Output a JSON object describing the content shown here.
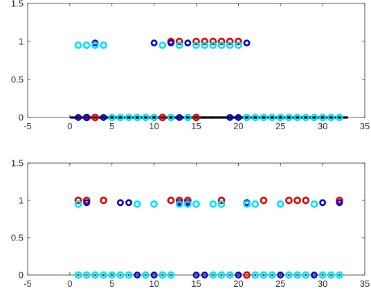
{
  "chart_data": [
    {
      "type": "scatter",
      "xlim": [
        -5,
        35
      ],
      "ylim": [
        0,
        1.5
      ],
      "xticks": [
        "-5",
        "0",
        "5",
        "10",
        "15",
        "20",
        "25",
        "30",
        "35"
      ],
      "yticks": [
        "0",
        "0.5",
        "1",
        "1.5"
      ],
      "baseline": {
        "x0": 0,
        "x1": 33,
        "y": 0,
        "color": "#000000"
      },
      "series": [
        {
          "color": "#e00000",
          "r": 4.0,
          "stroke": 2.7,
          "points": [
            [
              12,
              1.0
            ],
            [
              13,
              1.0
            ],
            [
              15,
              1.0
            ],
            [
              16,
              1.0
            ],
            [
              17,
              1.0
            ],
            [
              18,
              1.0
            ],
            [
              19,
              1.0
            ],
            [
              20,
              1.0
            ],
            [
              2,
              0
            ],
            [
              3,
              0
            ],
            [
              11,
              0
            ],
            [
              15,
              0
            ]
          ]
        },
        {
          "color": "#0000c8",
          "r": 3.6,
          "stroke": 2.7,
          "points": [
            [
              3,
              0.98
            ],
            [
              10,
              0.98
            ],
            [
              12,
              0.98
            ],
            [
              14,
              0.98
            ],
            [
              21,
              0.98
            ],
            [
              1,
              0
            ],
            [
              2,
              0
            ],
            [
              4,
              0
            ],
            [
              13,
              0
            ],
            [
              19,
              0
            ],
            [
              20,
              0
            ]
          ]
        },
        {
          "color": "#00e0ff",
          "r": 4.0,
          "stroke": 2.7,
          "points": [
            [
              1,
              0.95
            ],
            [
              2,
              0.95
            ],
            [
              3,
              0.95
            ],
            [
              4,
              0.95
            ],
            [
              11,
              0.95
            ],
            [
              13,
              0.95
            ],
            [
              15,
              0.95
            ],
            [
              16,
              0.95
            ],
            [
              17,
              0.95
            ],
            [
              18,
              0.95
            ],
            [
              19,
              0.95
            ],
            [
              20,
              0.95
            ],
            [
              5,
              0
            ],
            [
              6,
              0
            ],
            [
              7,
              0
            ],
            [
              8,
              0
            ],
            [
              9,
              0
            ],
            [
              10,
              0
            ],
            [
              12,
              0
            ],
            [
              14,
              0
            ],
            [
              21,
              0
            ],
            [
              22,
              0
            ],
            [
              23,
              0
            ],
            [
              24,
              0
            ],
            [
              25,
              0
            ],
            [
              26,
              0
            ],
            [
              27,
              0
            ],
            [
              28,
              0
            ],
            [
              29,
              0
            ],
            [
              30,
              0
            ],
            [
              31,
              0
            ],
            [
              32,
              0
            ]
          ]
        },
        {
          "color": "#000000",
          "r": 0.9,
          "stroke": 1.6,
          "points": [
            [
              1,
              0
            ],
            [
              2,
              0
            ],
            [
              3,
              0
            ],
            [
              4,
              0
            ],
            [
              5,
              0
            ],
            [
              6,
              0
            ],
            [
              7,
              0
            ],
            [
              8,
              0
            ],
            [
              9,
              0
            ],
            [
              10,
              0
            ],
            [
              11,
              0
            ],
            [
              12,
              0
            ],
            [
              13,
              0
            ],
            [
              14,
              0
            ],
            [
              15,
              0
            ],
            [
              16,
              0
            ],
            [
              17,
              0
            ],
            [
              18,
              0
            ],
            [
              19,
              0
            ],
            [
              20,
              0
            ],
            [
              21,
              0
            ],
            [
              22,
              0
            ],
            [
              23,
              0
            ],
            [
              24,
              0
            ],
            [
              25,
              0
            ],
            [
              26,
              0
            ],
            [
              27,
              0
            ],
            [
              28,
              0
            ],
            [
              29,
              0
            ],
            [
              30,
              0
            ],
            [
              31,
              0
            ],
            [
              32,
              0
            ]
          ]
        }
      ]
    },
    {
      "type": "scatter",
      "xlim": [
        -5,
        35
      ],
      "ylim": [
        0,
        1.5
      ],
      "xticks": [
        "-5",
        "0",
        "5",
        "10",
        "15",
        "20",
        "25",
        "30",
        "35"
      ],
      "yticks": [
        "0",
        "0.5",
        "1",
        "1.5"
      ],
      "series": [
        {
          "color": "#e00000",
          "r": 4.0,
          "stroke": 2.7,
          "points": [
            [
              1,
              1.0
            ],
            [
              2,
              1.0
            ],
            [
              4,
              1.0
            ],
            [
              12,
              1.0
            ],
            [
              13,
              1.0
            ],
            [
              14,
              1.0
            ],
            [
              18,
              1.0
            ],
            [
              23,
              1.0
            ],
            [
              26,
              1.0
            ],
            [
              27,
              1.0
            ],
            [
              28,
              1.0
            ],
            [
              32,
              1.0
            ],
            [
              21,
              0
            ]
          ]
        },
        {
          "color": "#0000c8",
          "r": 3.6,
          "stroke": 2.7,
          "points": [
            [
              2,
              0.97
            ],
            [
              6,
              0.97
            ],
            [
              7,
              0.97
            ],
            [
              13,
              0.97
            ],
            [
              14,
              0.97
            ],
            [
              21,
              0.97
            ],
            [
              30,
              0.97
            ],
            [
              32,
              0.97
            ],
            [
              8,
              0
            ],
            [
              10,
              0
            ],
            [
              15,
              0
            ],
            [
              16,
              0
            ],
            [
              20,
              0
            ],
            [
              25,
              0
            ],
            [
              29,
              0
            ]
          ]
        },
        {
          "color": "#00e0ff",
          "r": 4.0,
          "stroke": 2.7,
          "points": [
            [
              1,
              0.95
            ],
            [
              8,
              0.95
            ],
            [
              10,
              0.95
            ],
            [
              13,
              0.95
            ],
            [
              14,
              0.95
            ],
            [
              15,
              0.95
            ],
            [
              17,
              0.95
            ],
            [
              18,
              0.95
            ],
            [
              21,
              0.95
            ],
            [
              22,
              0.95
            ],
            [
              25,
              0.95
            ],
            [
              29,
              0.95
            ],
            [
              1,
              0
            ],
            [
              2,
              0
            ],
            [
              3,
              0
            ],
            [
              4,
              0
            ],
            [
              5,
              0
            ],
            [
              6,
              0
            ],
            [
              7,
              0
            ],
            [
              9,
              0
            ],
            [
              11,
              0
            ],
            [
              12,
              0
            ],
            [
              17,
              0
            ],
            [
              18,
              0
            ],
            [
              19,
              0
            ],
            [
              22,
              0
            ],
            [
              23,
              0
            ],
            [
              24,
              0
            ],
            [
              26,
              0
            ],
            [
              27,
              0
            ],
            [
              28,
              0
            ],
            [
              30,
              0
            ],
            [
              31,
              0
            ],
            [
              32,
              0
            ]
          ]
        },
        {
          "color": "#000000",
          "r": 0.7,
          "stroke": 0.9,
          "points": [
            [
              1,
              0
            ],
            [
              2,
              0
            ],
            [
              3,
              0
            ],
            [
              4,
              0
            ],
            [
              5,
              0
            ],
            [
              6,
              0
            ],
            [
              7,
              0
            ],
            [
              8,
              0
            ],
            [
              9,
              0
            ],
            [
              10,
              0
            ],
            [
              11,
              0
            ],
            [
              12,
              0
            ],
            [
              15,
              0
            ],
            [
              16,
              0
            ],
            [
              17,
              0
            ],
            [
              18,
              0
            ],
            [
              19,
              0
            ],
            [
              20,
              0
            ],
            [
              21,
              0
            ],
            [
              22,
              0
            ],
            [
              23,
              0
            ],
            [
              24,
              0
            ],
            [
              25,
              0
            ],
            [
              26,
              0
            ],
            [
              27,
              0
            ],
            [
              28,
              0
            ],
            [
              29,
              0
            ],
            [
              30,
              0
            ],
            [
              31,
              0
            ],
            [
              32,
              0
            ]
          ]
        }
      ]
    }
  ]
}
